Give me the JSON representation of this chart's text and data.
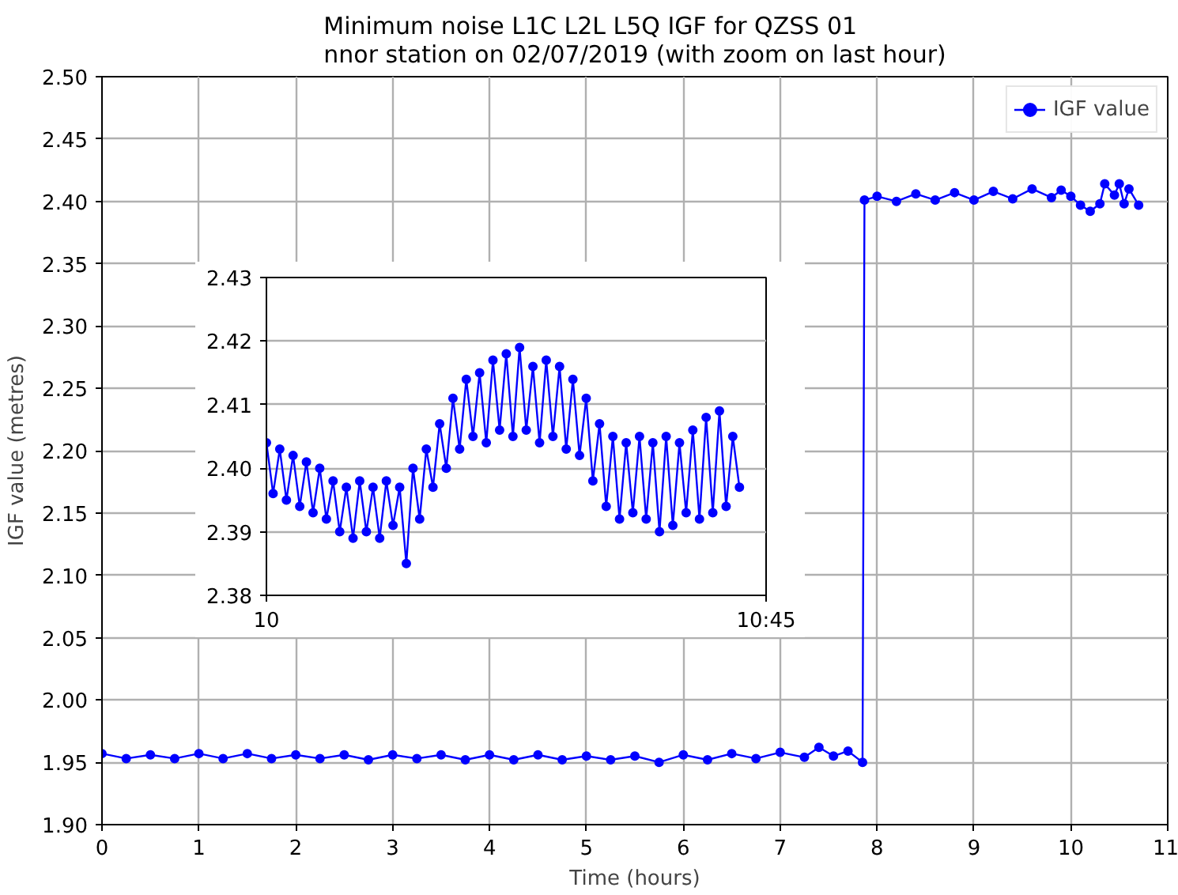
{
  "chart_data": [
    {
      "type": "line",
      "title": "Minimum noise L1C L2L L5Q IGF for QZSS 01\nnnor station on 02/07/2019 (with zoom on last hour)",
      "xlabel": "Time (hours)",
      "ylabel": "IGF value (metres)",
      "x": [
        0,
        0.25,
        0.5,
        0.75,
        1,
        1.25,
        1.5,
        1.75,
        2,
        2.25,
        2.5,
        2.75,
        3,
        3.25,
        3.5,
        3.75,
        4,
        4.25,
        4.5,
        4.75,
        5,
        5.25,
        5.5,
        5.75,
        6,
        6.25,
        6.5,
        6.75,
        7,
        7.25,
        7.4,
        7.55,
        7.7,
        7.85,
        7.87,
        8.0,
        8.2,
        8.4,
        8.6,
        8.8,
        9.0,
        9.2,
        9.4,
        9.6,
        9.8,
        9.9,
        10.0,
        10.1,
        10.2,
        10.3,
        10.35,
        10.45,
        10.5,
        10.55,
        10.6,
        10.7
      ],
      "series": [
        {
          "name": "IGF value",
          "color": "#0000ff",
          "values": [
            1.957,
            1.953,
            1.956,
            1.953,
            1.957,
            1.953,
            1.957,
            1.953,
            1.956,
            1.953,
            1.956,
            1.952,
            1.956,
            1.953,
            1.956,
            1.952,
            1.956,
            1.952,
            1.956,
            1.952,
            1.955,
            1.952,
            1.955,
            1.95,
            1.956,
            1.952,
            1.957,
            1.953,
            1.958,
            1.954,
            1.962,
            1.955,
            1.959,
            1.95,
            2.401,
            2.404,
            2.4,
            2.406,
            2.401,
            2.407,
            2.401,
            2.408,
            2.402,
            2.41,
            2.403,
            2.409,
            2.404,
            2.397,
            2.392,
            2.398,
            2.414,
            2.405,
            2.414,
            2.398,
            2.41,
            2.397
          ]
        }
      ],
      "xlim": [
        0,
        11
      ],
      "xticks": [
        0,
        1,
        2,
        3,
        4,
        5,
        6,
        7,
        8,
        9,
        10,
        11
      ],
      "ylim": [
        1.9,
        2.5
      ],
      "yticks": [
        {
          "value": 1.9,
          "label": "1.90"
        },
        {
          "value": 1.95,
          "label": "1.95"
        },
        {
          "value": 2.0,
          "label": "2.00"
        },
        {
          "value": 2.05,
          "label": "2.05"
        },
        {
          "value": 2.1,
          "label": "2.10"
        },
        {
          "value": 2.15,
          "label": "2.15"
        },
        {
          "value": 2.2,
          "label": "2.20"
        },
        {
          "value": 2.25,
          "label": "2.25"
        },
        {
          "value": 2.3,
          "label": "2.30"
        },
        {
          "value": 2.35,
          "label": "2.35"
        },
        {
          "value": 2.4,
          "label": "2.40"
        },
        {
          "value": 2.45,
          "label": "2.45"
        },
        {
          "value": 2.5,
          "label": "2.50"
        }
      ],
      "grid": true,
      "legend": "top right",
      "marker": "circle",
      "line_style": "solid"
    },
    {
      "type": "line",
      "x": [
        10.0,
        10.01,
        10.02,
        10.03,
        10.04,
        10.05,
        10.06,
        10.07,
        10.08,
        10.09,
        10.1,
        10.11,
        10.12,
        10.13,
        10.14,
        10.15,
        10.16,
        10.17,
        10.18,
        10.19,
        10.2,
        10.21,
        10.22,
        10.23,
        10.24,
        10.25,
        10.26,
        10.27,
        10.28,
        10.29,
        10.3,
        10.31,
        10.32,
        10.33,
        10.34,
        10.35,
        10.36,
        10.37,
        10.38,
        10.39,
        10.4,
        10.41,
        10.42,
        10.43,
        10.44,
        10.45,
        10.46,
        10.47,
        10.48,
        10.49,
        10.5,
        10.51,
        10.52,
        10.53,
        10.54,
        10.55,
        10.56,
        10.57,
        10.58,
        10.59,
        10.6,
        10.61,
        10.62,
        10.63,
        10.64,
        10.65,
        10.66,
        10.67,
        10.68,
        10.69,
        10.7,
        10.71
      ],
      "series": [
        {
          "color": "#0000ff",
          "values": [
            2.404,
            2.396,
            2.403,
            2.395,
            2.402,
            2.394,
            2.401,
            2.393,
            2.4,
            2.392,
            2.398,
            2.39,
            2.397,
            2.389,
            2.398,
            2.39,
            2.397,
            2.389,
            2.398,
            2.391,
            2.397,
            2.385,
            2.4,
            2.392,
            2.403,
            2.397,
            2.407,
            2.4,
            2.411,
            2.403,
            2.414,
            2.405,
            2.415,
            2.404,
            2.417,
            2.406,
            2.418,
            2.405,
            2.419,
            2.406,
            2.416,
            2.404,
            2.417,
            2.405,
            2.416,
            2.403,
            2.414,
            2.402,
            2.411,
            2.398,
            2.407,
            2.394,
            2.405,
            2.392,
            2.404,
            2.393,
            2.405,
            2.392,
            2.404,
            2.39,
            2.405,
            2.391,
            2.404,
            2.393,
            2.406,
            2.392,
            2.408,
            2.393,
            2.409,
            2.394,
            2.405,
            2.397
          ]
        }
      ],
      "xlim": [
        10,
        10.75
      ],
      "xticks": [
        {
          "value": 10,
          "label": "10"
        },
        {
          "value": 10.75,
          "label": "10:45"
        }
      ],
      "ylim": [
        2.38,
        2.43
      ],
      "yticks": [
        2.38,
        2.39,
        {
          "value": 2.4,
          "label": "2.40"
        },
        2.41,
        2.42,
        2.43
      ],
      "grid": "y",
      "marker": "circle",
      "line_style": "solid"
    }
  ]
}
